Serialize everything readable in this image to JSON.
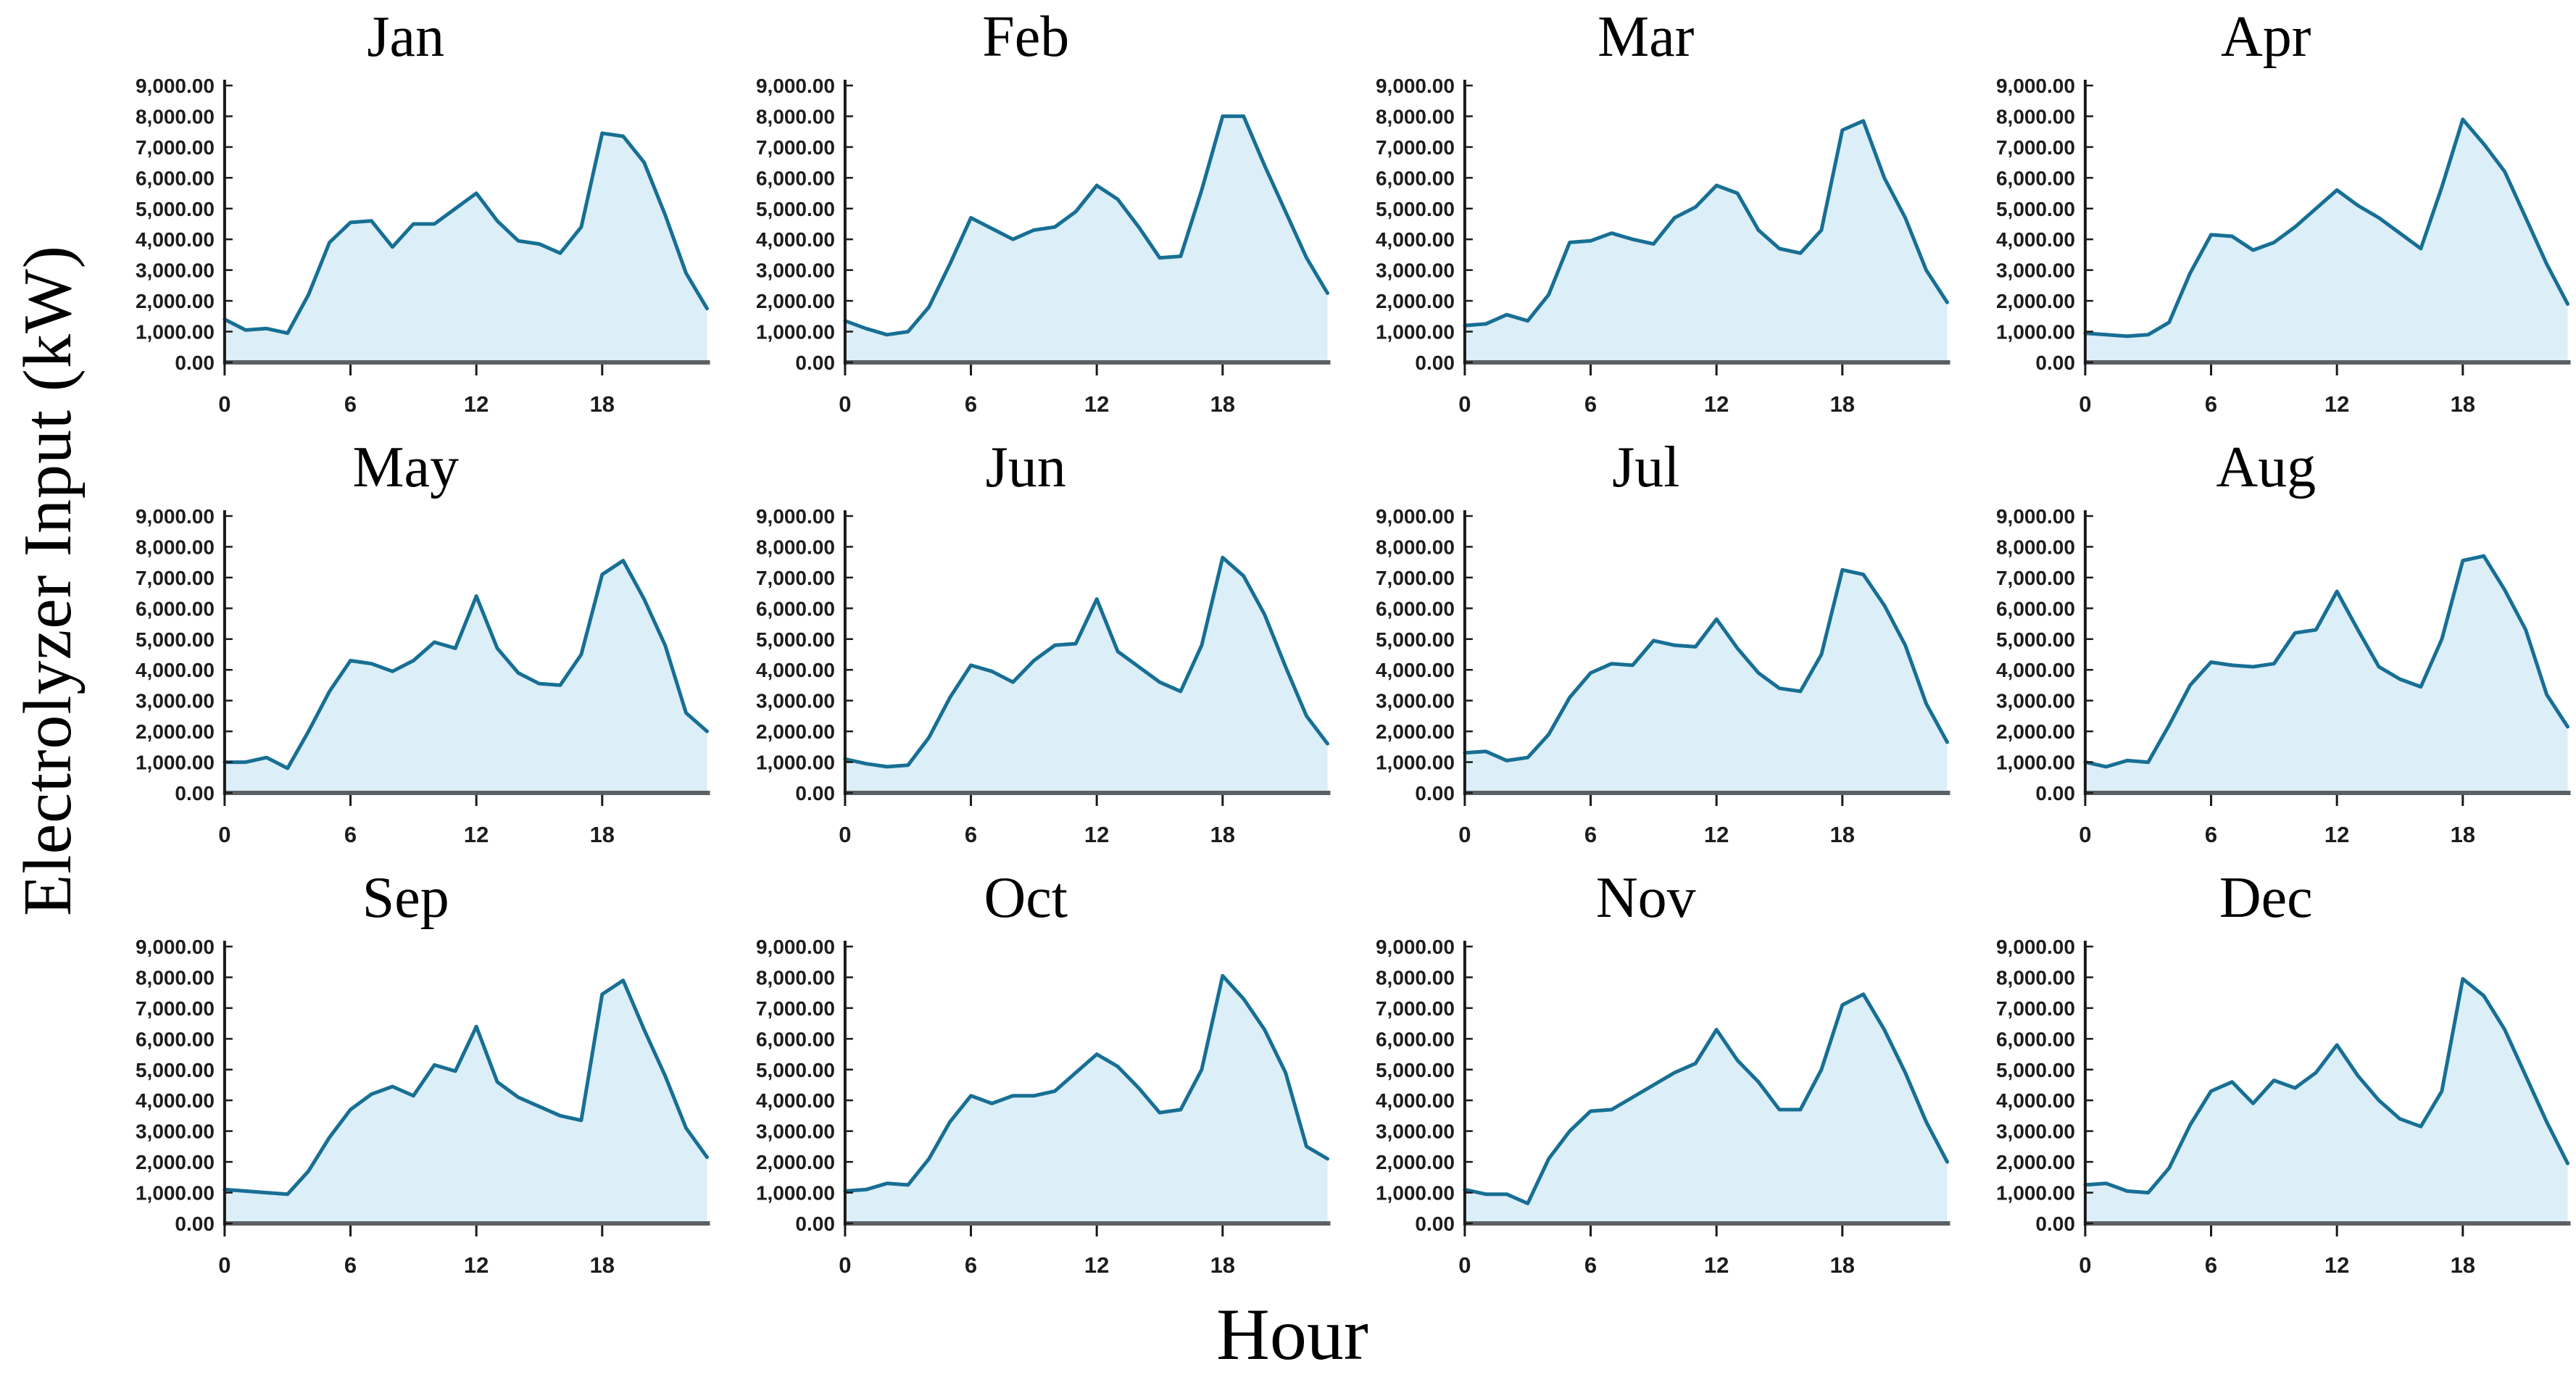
{
  "figure": {
    "ylabel": "Electrolyzer Input (kW)",
    "xlabel": "Hour"
  },
  "axes": {
    "ylim": [
      0,
      9000
    ],
    "ytick_step": 1000,
    "ytick_labels": [
      "0.00",
      "1,000.00",
      "2,000.00",
      "3,000.00",
      "4,000.00",
      "5,000.00",
      "6,000.00",
      "7,000.00",
      "8,000.00",
      "9,000.00"
    ],
    "xticks": [
      0,
      6,
      12,
      18
    ],
    "x_range": [
      0,
      23
    ],
    "grid": "off",
    "legend": "none"
  },
  "colors": {
    "line": "#176f94",
    "fill": "#dceef8",
    "baseline": "#5a6064",
    "axis": "#1a1a1a",
    "background": "#ffffff"
  },
  "chart_data": {
    "type": "area",
    "x_unit": "hour-of-day",
    "x": [
      0,
      1,
      2,
      3,
      4,
      5,
      6,
      7,
      8,
      9,
      10,
      11,
      12,
      13,
      14,
      15,
      16,
      17,
      18,
      19,
      20,
      21,
      22,
      23
    ],
    "series": [
      {
        "name": "Jan",
        "values": [
          1400,
          1050,
          1100,
          950,
          2200,
          3900,
          4550,
          4600,
          3750,
          4500,
          4500,
          5000,
          5500,
          4600,
          3950,
          3850,
          3550,
          4400,
          7450,
          7350,
          6500,
          4800,
          2900,
          1750
        ]
      },
      {
        "name": "Feb",
        "values": [
          1350,
          1100,
          900,
          1000,
          1800,
          3200,
          4700,
          4350,
          4000,
          4300,
          4400,
          4900,
          5750,
          5300,
          4400,
          3400,
          3450,
          5600,
          8000,
          8000,
          6400,
          4900,
          3400,
          2250
        ]
      },
      {
        "name": "Mar",
        "values": [
          1200,
          1250,
          1550,
          1350,
          2200,
          3900,
          3950,
          4200,
          4000,
          3850,
          4700,
          5050,
          5750,
          5500,
          4300,
          3700,
          3550,
          4300,
          7550,
          7850,
          6000,
          4700,
          3000,
          1950
        ]
      },
      {
        "name": "Apr",
        "values": [
          950,
          900,
          850,
          900,
          1300,
          2900,
          4150,
          4100,
          3650,
          3900,
          4400,
          5000,
          5600,
          5100,
          4700,
          4200,
          3700,
          5700,
          7900,
          7100,
          6200,
          4700,
          3200,
          1900
        ]
      },
      {
        "name": "May",
        "values": [
          1000,
          1000,
          1150,
          800,
          2000,
          3300,
          4300,
          4200,
          3950,
          4300,
          4900,
          4700,
          6400,
          4700,
          3900,
          3550,
          3500,
          4500,
          7100,
          7550,
          6300,
          4800,
          2600,
          2000
        ]
      },
      {
        "name": "Jun",
        "values": [
          1100,
          950,
          850,
          900,
          1800,
          3100,
          4150,
          3950,
          3600,
          4300,
          4800,
          4850,
          6300,
          4600,
          4100,
          3600,
          3300,
          4800,
          7650,
          7050,
          5800,
          4100,
          2500,
          1600
        ]
      },
      {
        "name": "Jul",
        "values": [
          1300,
          1350,
          1050,
          1150,
          1900,
          3100,
          3900,
          4200,
          4150,
          4950,
          4800,
          4750,
          5650,
          4700,
          3900,
          3400,
          3300,
          4500,
          7250,
          7100,
          6100,
          4800,
          2900,
          1650
        ]
      },
      {
        "name": "Aug",
        "values": [
          1000,
          850,
          1050,
          1000,
          2200,
          3500,
          4250,
          4150,
          4100,
          4200,
          5200,
          5300,
          6550,
          5300,
          4100,
          3700,
          3450,
          5000,
          7550,
          7700,
          6600,
          5300,
          3200,
          2150
        ]
      },
      {
        "name": "Sep",
        "values": [
          1100,
          1050,
          1000,
          950,
          1700,
          2800,
          3700,
          4200,
          4450,
          4150,
          5150,
          4950,
          6400,
          4600,
          4100,
          3800,
          3500,
          3350,
          7450,
          7900,
          6300,
          4800,
          3100,
          2150
        ]
      },
      {
        "name": "Oct",
        "values": [
          1050,
          1100,
          1300,
          1250,
          2100,
          3300,
          4150,
          3900,
          4150,
          4150,
          4300,
          4900,
          5500,
          5100,
          4400,
          3600,
          3700,
          5000,
          8050,
          7300,
          6300,
          4900,
          2500,
          2100
        ]
      },
      {
        "name": "Nov",
        "values": [
          1100,
          950,
          950,
          650,
          2100,
          3000,
          3650,
          3700,
          4100,
          4500,
          4900,
          5200,
          6300,
          5300,
          4600,
          3700,
          3700,
          5000,
          7100,
          7450,
          6300,
          4900,
          3300,
          2000
        ]
      },
      {
        "name": "Dec",
        "values": [
          1250,
          1300,
          1050,
          1000,
          1800,
          3200,
          4300,
          4600,
          3900,
          4650,
          4400,
          4900,
          5800,
          4800,
          4000,
          3400,
          3150,
          4300,
          7950,
          7400,
          6300,
          4800,
          3300,
          1950
        ]
      }
    ]
  }
}
